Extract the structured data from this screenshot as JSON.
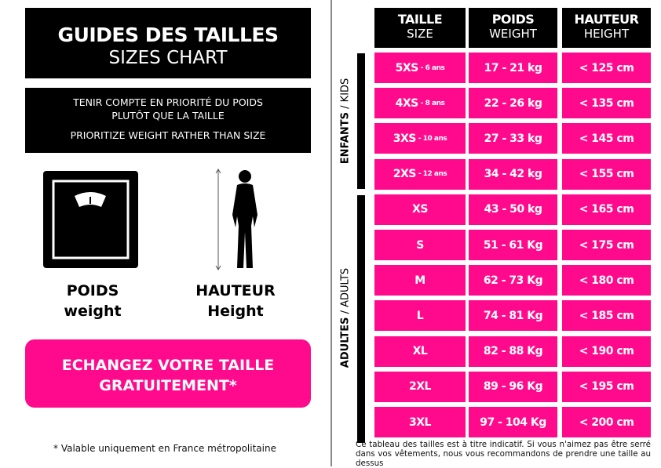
{
  "left": {
    "title": "GUIDES DES TAILLES",
    "subtitle": "SIZES CHART",
    "note_fr_1": "TENIR COMPTE EN PRIORITÉ DU POIDS",
    "note_fr_2": "PLUTÔT QUE LA TAILLE",
    "note_en": "PRIORITIZE WEIGHT RATHER THAN SIZE",
    "poids_fr": "POIDS",
    "poids_en": "weight",
    "hauteur_fr": "HAUTEUR",
    "hauteur_en": "Height",
    "cta_1": "ECHANGEZ VOTRE TAILLE",
    "cta_2": "GRATUITEMENT*",
    "footnote": "* Valable uniquement en France métropolitaine"
  },
  "table": {
    "headers": [
      {
        "fr": "TAILLE",
        "en": "SIZE"
      },
      {
        "fr": "POIDS",
        "en": "WEIGHT"
      },
      {
        "fr": "HAUTEUR",
        "en": "HEIGHT"
      }
    ],
    "kids_label_fr": "ENFANTS",
    "kids_label_en": " / KIDS",
    "adults_label_fr": "ADULTES",
    "adults_label_en": " / ADULTS",
    "rows": [
      {
        "size": "5XS",
        "age": "- 6 ans",
        "weight": "17 - 21 kg",
        "height": "< 125 cm"
      },
      {
        "size": "4XS",
        "age": "- 8 ans",
        "weight": "22 - 26 kg",
        "height": "< 135 cm"
      },
      {
        "size": "3XS",
        "age": "- 10 ans",
        "weight": "27 - 33 kg",
        "height": "< 145 cm"
      },
      {
        "size": "2XS",
        "age": "- 12 ans",
        "weight": "34 - 42 kg",
        "height": "< 155 cm"
      },
      {
        "size": "XS",
        "age": "",
        "weight": "43 - 50 kg",
        "height": "< 165 cm"
      },
      {
        "size": "S",
        "age": "",
        "weight": "51 - 61 Kg",
        "height": "< 175 cm"
      },
      {
        "size": "M",
        "age": "",
        "weight": "62 - 73 Kg",
        "height": "< 180 cm"
      },
      {
        "size": "L",
        "age": "",
        "weight": "74 - 81 Kg",
        "height": "< 185 cm"
      },
      {
        "size": "XL",
        "age": "",
        "weight": "82 - 88 Kg",
        "height": "< 190 cm"
      },
      {
        "size": "2XL",
        "age": "",
        "weight": "89 - 96 Kg",
        "height": "< 195 cm"
      },
      {
        "size": "3XL",
        "age": "",
        "weight": "97 - 104 Kg",
        "height": "< 200 cm"
      }
    ],
    "disclaimer": "Ce tableau des tailles est à titre indicatif. Si vous n'aimez pas être serré dans vos vêtements, nous vous recommandons de prendre une taille au dessus"
  },
  "colors": {
    "accent": "#ff0a8c",
    "dark": "#000000"
  }
}
